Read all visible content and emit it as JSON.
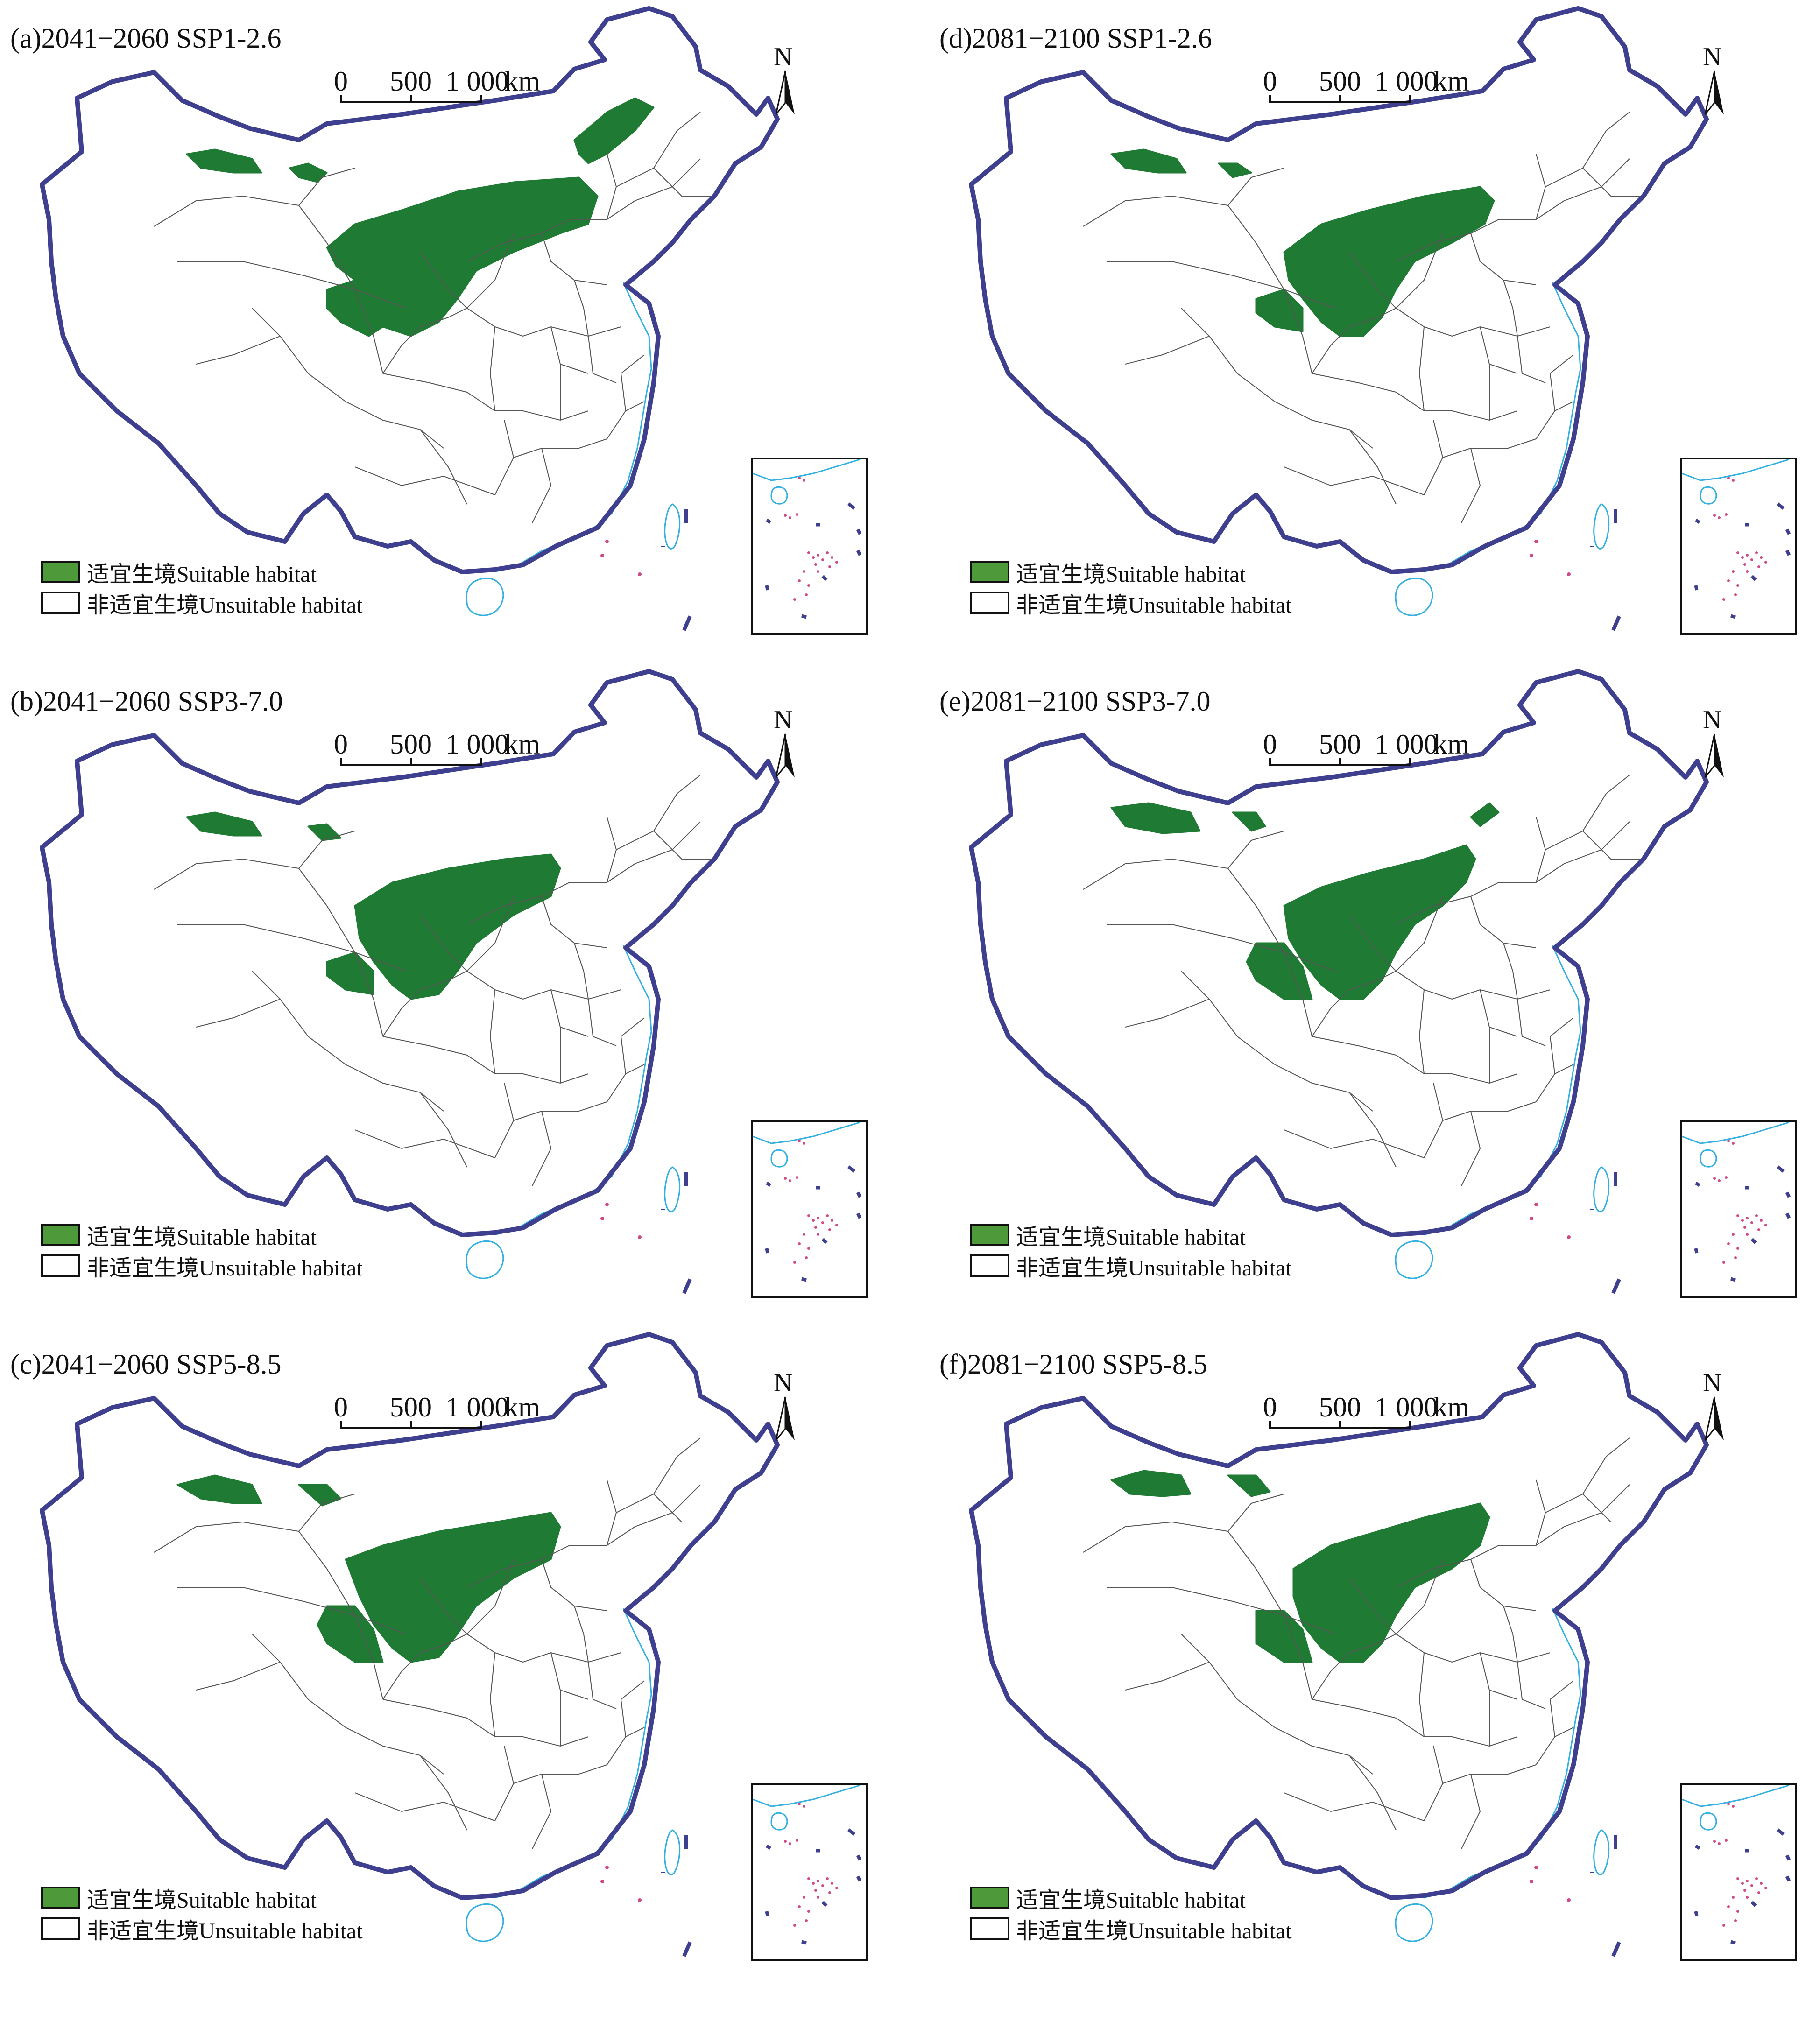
{
  "panels": [
    {
      "id": "a",
      "title": "(a)2041−2060 SSP1-2.6"
    },
    {
      "id": "b",
      "title": "(b)2041−2060 SSP3-7.0"
    },
    {
      "id": "c",
      "title": "(c)2041−2060 SSP5-8.5"
    },
    {
      "id": "d",
      "title": "(d)2081−2100 SSP1-2.6"
    },
    {
      "id": "e",
      "title": "(e)2081−2100 SSP3-7.0"
    },
    {
      "id": "f",
      "title": "(f)2081−2100 SSP5-8.5"
    }
  ],
  "scale_bar": {
    "ticks": [
      "0",
      "500",
      "1 000"
    ],
    "unit": "km"
  },
  "north_arrow": {
    "label": "N"
  },
  "legend": {
    "suitable": "适宜生境Suitable habitat",
    "unsuitable": "非适宜生境Unsuitable habitat"
  },
  "colors": {
    "suitable": "#1f7a33",
    "legend_suitable": "#4e9a3a",
    "unsuitable": "#ffffff",
    "national_border": "#3f3f8f",
    "province_border": "#555555",
    "coastline": "#33b0e0",
    "islands": "#d04a8a"
  }
}
